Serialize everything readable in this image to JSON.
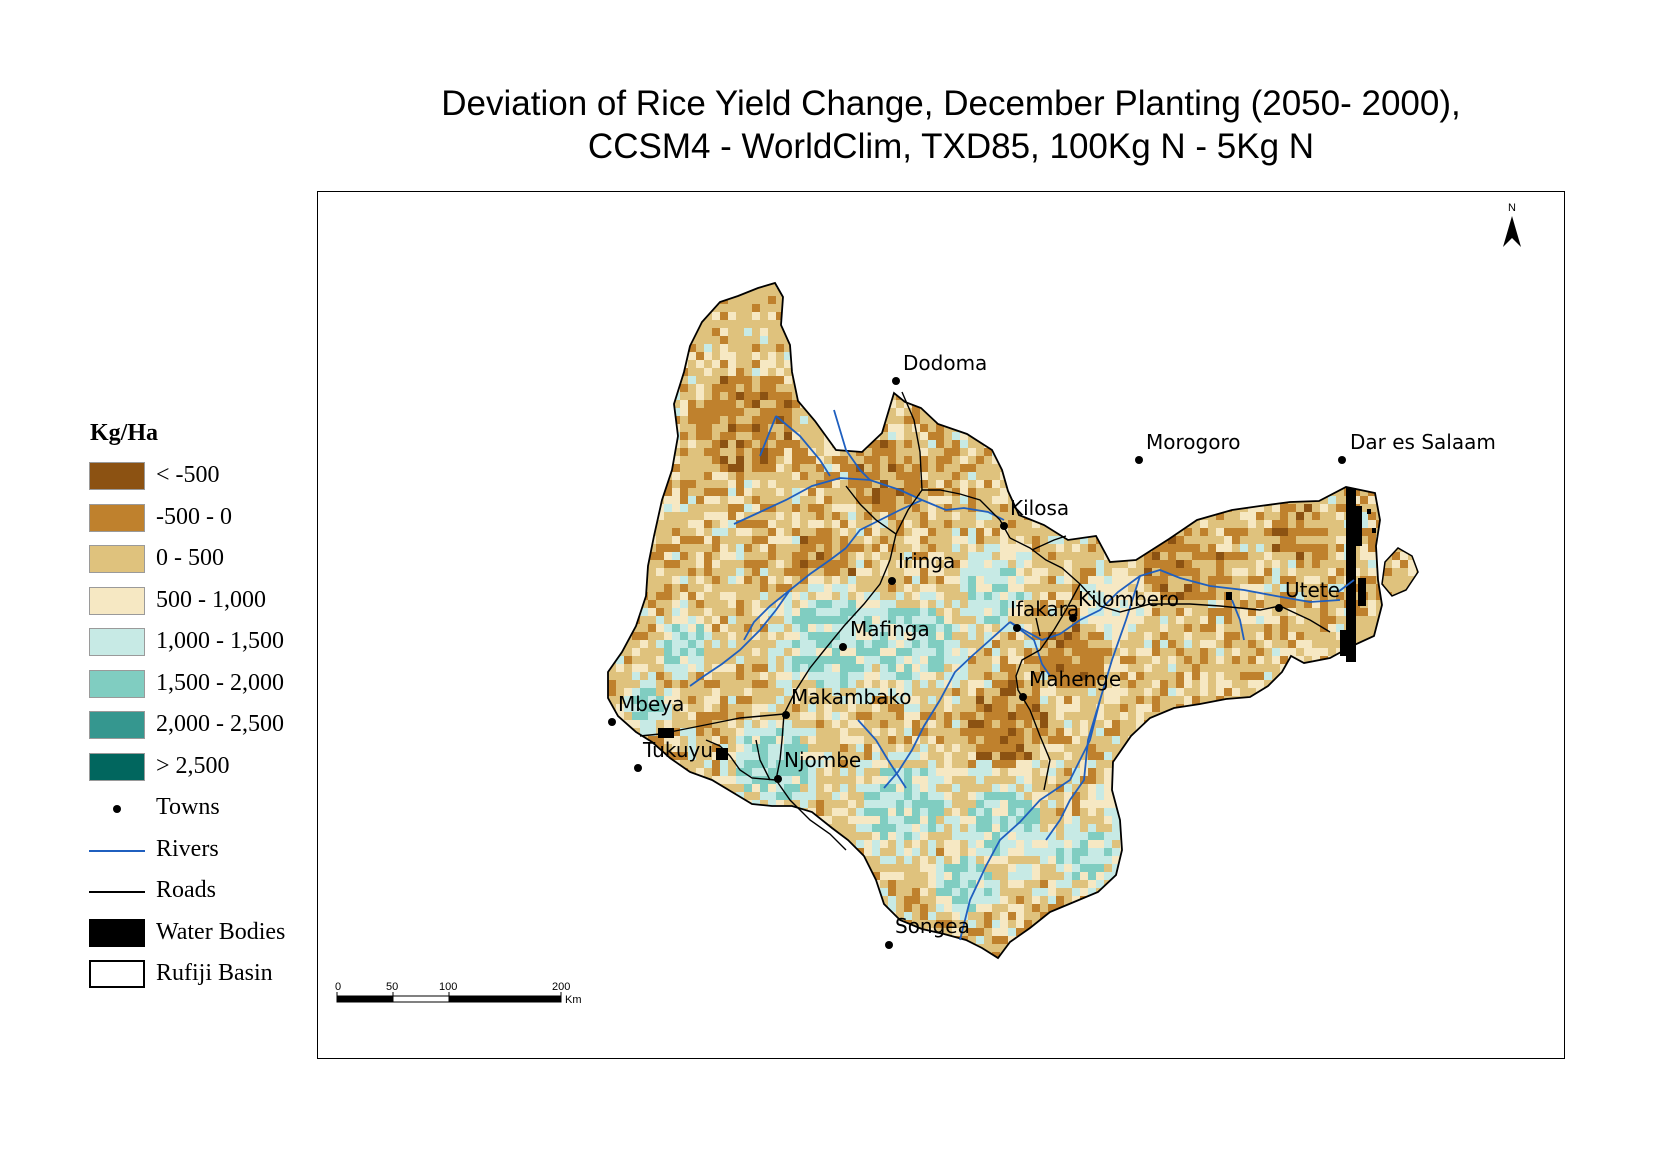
{
  "title": {
    "line1": "Deviation of Rice Yield Change, December Planting (2050- 2000),",
    "line2": "CCSM4 - WorldClim, TXD85, 100Kg N - 5Kg N"
  },
  "legend": {
    "title": "Kg/Ha",
    "classes": [
      {
        "label": "< -500",
        "color": "#8c5212"
      },
      {
        "label": "-500 - 0",
        "color": "#bf812d"
      },
      {
        "label": "0 - 500",
        "color": "#dfc27d"
      },
      {
        "label": "500 - 1,000",
        "color": "#f6e8c3"
      },
      {
        "label": "1,000 - 1,500",
        "color": "#c7eae5"
      },
      {
        "label": "1,500 - 2,000",
        "color": "#80cdc1"
      },
      {
        "label": "2,000 - 2,500",
        "color": "#35978f"
      },
      {
        "label": "> 2,500",
        "color": "#01665e"
      }
    ],
    "towns_label": "Towns",
    "rivers_label": "Rivers",
    "roads_label": "Roads",
    "water_label": "Water Bodies",
    "basin_label": "Rufiji Basin",
    "river_color": "#1f5fbf",
    "road_color": "#000000",
    "water_color": "#000000"
  },
  "north_arrow": {
    "label": "N"
  },
  "scale_bar": {
    "ticks": [
      "0",
      "50",
      "100",
      "200"
    ],
    "unit": "Km"
  },
  "towns": [
    {
      "id": "dodoma",
      "label": "Dodoma"
    },
    {
      "id": "morogoro",
      "label": "Morogoro"
    },
    {
      "id": "dar",
      "label": "Dar es Salaam"
    },
    {
      "id": "kilosa",
      "label": "Kilosa"
    },
    {
      "id": "iringa",
      "label": "Iringa"
    },
    {
      "id": "ifakara",
      "label": "Ifakara"
    },
    {
      "id": "kilombero",
      "label": "Kilombero"
    },
    {
      "id": "utete",
      "label": "Utete"
    },
    {
      "id": "mafinga",
      "label": "Mafinga"
    },
    {
      "id": "mahenge",
      "label": "Mahenge"
    },
    {
      "id": "mbeya",
      "label": "Mbeya"
    },
    {
      "id": "makambako",
      "label": "Makambako"
    },
    {
      "id": "tukuyu",
      "label": "Tukuyu"
    },
    {
      "id": "njombe",
      "label": "Njombe"
    },
    {
      "id": "songea",
      "label": "Songea"
    }
  ]
}
